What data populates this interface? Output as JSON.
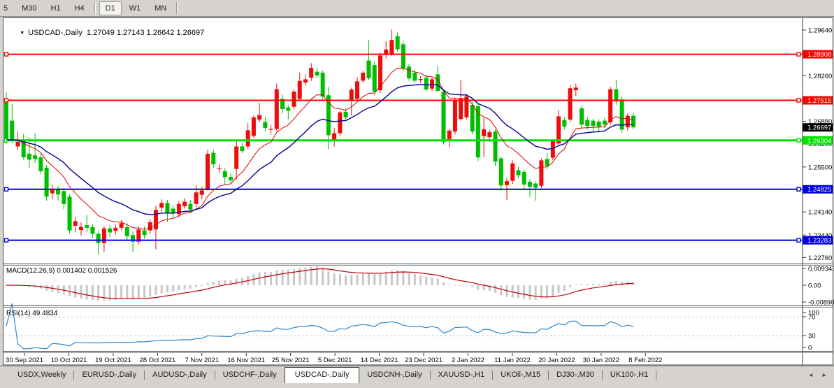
{
  "toolbar": {
    "timeframes": [
      "5",
      "M30",
      "H1",
      "H4",
      "D1",
      "W1",
      "MN"
    ],
    "active": "D1"
  },
  "icons": {
    "dropdown": "▼",
    "tab_prev": "◄",
    "tab_next": "►"
  },
  "tabs": {
    "items": [
      "USDX,Weekly",
      "EURUSD-,Daily",
      "AUDUSD-,Daily",
      "USDCHF-,Daily",
      "USDCAD-,Daily",
      "USDCNH-,Daily",
      "XAUUSD-,H1",
      "UKOil-,M15",
      "DJ30-,M30",
      "UK100-,H1"
    ],
    "active_index": 4
  },
  "chart_data": {
    "type": "candlestick",
    "symbol": "USDCAD-,Daily",
    "ohlc_text": "1.27049 1.27143 1.26642 1.26697",
    "ohlc_display": {
      "open": "1.27049",
      "high": "1.27143",
      "low": "1.26642",
      "close": "1.26697"
    },
    "colors": {
      "up": "#ee0c0c",
      "down": "#00be00",
      "ma_fast": "#dd0000",
      "ma_slow": "#000090",
      "hline_red": "#ff0000",
      "hline_green": "#00e400",
      "hline_blue": "#0000dd",
      "macd_hist": "#c7c7c7",
      "macd_signal": "#bf0000",
      "rsi": "#2e86d0",
      "current_bg": "#000000",
      "label_text": "#ffffff"
    },
    "price_ticks": [
      "1.29640",
      "1.28260",
      "1.26880",
      "1.26200",
      "1.25500",
      "1.24140",
      "1.23440",
      "1.22760"
    ],
    "hlines": [
      {
        "price": 1.28908,
        "label": "1.28908",
        "color": "#ff0000",
        "width": 2
      },
      {
        "price": 1.27515,
        "label": "1.27515",
        "color": "#ff0000",
        "width": 2
      },
      {
        "price": 1.26304,
        "label": "1.26304",
        "color": "#00e400",
        "width": 3
      },
      {
        "price": 1.24825,
        "label": "1.24825",
        "color": "#0000dd",
        "width": 2
      },
      {
        "price": 1.23283,
        "label": "1.23283",
        "color": "#0000dd",
        "width": 2
      }
    ],
    "current_price": {
      "price": 1.26697,
      "label": "1.26697"
    },
    "x_labels": [
      "30 Sep 2021",
      "10 Oct 2021",
      "19 Oct 2021",
      "28 Oct 2021",
      "7 Nov 2021",
      "16 Nov 2021",
      "25 Nov 2021",
      "5 Dec 2021",
      "14 Dec 2021",
      "23 Dec 2021",
      "2 Jan 2022",
      "11 Jan 2022",
      "20 Jan 2022",
      "30 Jan 2022",
      "8 Feb 2022"
    ],
    "overlays": [
      {
        "name": "ma-fast",
        "period": 10,
        "color": "#dd0000",
        "width": 1
      },
      {
        "name": "ma-slow",
        "period": 21,
        "color": "#000090",
        "width": 1.4
      }
    ],
    "macd": {
      "label": "MACD(12,26,9)",
      "values_text": "0.001402 0.001526",
      "params": [
        12,
        26,
        9
      ],
      "axis": [
        "0.009345",
        "0.00",
        "-0.008902"
      ]
    },
    "rsi": {
      "label": "RSI(14)",
      "value_text": "49.4834",
      "period": 14,
      "levels": [
        70,
        30
      ],
      "axis": [
        "100",
        "70",
        "30",
        "0"
      ]
    },
    "candles": [
      [
        1.2752,
        1.2775,
        1.262,
        1.2632
      ],
      [
        1.269,
        1.274,
        1.2622,
        1.2633
      ],
      [
        1.2612,
        1.2656,
        1.26,
        1.2626
      ],
      [
        1.2626,
        1.265,
        1.2572,
        1.2579
      ],
      [
        1.259,
        1.264,
        1.2548,
        1.2572
      ],
      [
        1.2585,
        1.2652,
        1.2562,
        1.2574
      ],
      [
        1.2579,
        1.259,
        1.2528,
        1.2537
      ],
      [
        1.2548,
        1.2556,
        1.2448,
        1.246
      ],
      [
        1.247,
        1.2496,
        1.2452,
        1.2484
      ],
      [
        1.2481,
        1.2492,
        1.2448,
        1.2467
      ],
      [
        1.2477,
        1.2486,
        1.2422,
        1.2438
      ],
      [
        1.246,
        1.2468,
        1.2348,
        1.2358
      ],
      [
        1.2372,
        1.24,
        1.2352,
        1.2386
      ],
      [
        1.2359,
        1.2382,
        1.2342,
        1.2369
      ],
      [
        1.2374,
        1.2405,
        1.2352,
        1.2366
      ],
      [
        1.2368,
        1.2376,
        1.2336,
        1.2348
      ],
      [
        1.2348,
        1.2356,
        1.2285,
        1.232
      ],
      [
        1.232,
        1.2372,
        1.2292,
        1.2364
      ],
      [
        1.2364,
        1.2374,
        1.2338,
        1.2352
      ],
      [
        1.2357,
        1.2376,
        1.2346,
        1.2366
      ],
      [
        1.2366,
        1.239,
        1.2358,
        1.238
      ],
      [
        1.2368,
        1.238,
        1.2328,
        1.2341
      ],
      [
        1.2344,
        1.2356,
        1.2293,
        1.2324
      ],
      [
        1.2324,
        1.237,
        1.2316,
        1.2361
      ],
      [
        1.2358,
        1.237,
        1.2333,
        1.2344
      ],
      [
        1.2358,
        1.2392,
        1.2348,
        1.2383
      ],
      [
        1.2361,
        1.2433,
        1.2301,
        1.242
      ],
      [
        1.2427,
        1.2452,
        1.2414,
        1.2441
      ],
      [
        1.2441,
        1.245,
        1.2384,
        1.241
      ],
      [
        1.2424,
        1.2434,
        1.2396,
        1.241
      ],
      [
        1.2407,
        1.2447,
        1.2398,
        1.2438
      ],
      [
        1.2431,
        1.2456,
        1.2424,
        1.2445
      ],
      [
        1.2438,
        1.245,
        1.2412,
        1.2421
      ],
      [
        1.2438,
        1.2494,
        1.2428,
        1.2473
      ],
      [
        1.2466,
        1.249,
        1.2452,
        1.2479
      ],
      [
        1.2484,
        1.2602,
        1.2478,
        1.259
      ],
      [
        1.2593,
        1.2602,
        1.2548,
        1.2558
      ],
      [
        1.2544,
        1.2558,
        1.2532,
        1.2546
      ],
      [
        1.2537,
        1.2546,
        1.2498,
        1.2519
      ],
      [
        1.252,
        1.2532,
        1.2502,
        1.251
      ],
      [
        1.2544,
        1.2632,
        1.2512,
        1.2612
      ],
      [
        1.2612,
        1.2622,
        1.2592,
        1.2598
      ],
      [
        1.2612,
        1.2682,
        1.2604,
        1.2661
      ],
      [
        1.2644,
        1.2706,
        1.2638,
        1.27
      ],
      [
        1.2693,
        1.2744,
        1.2684,
        1.2707
      ],
      [
        1.2686,
        1.2702,
        1.2658,
        1.2668
      ],
      [
        1.2665,
        1.2678,
        1.2648,
        1.2665
      ],
      [
        1.2665,
        1.2802,
        1.2658,
        1.2785
      ],
      [
        1.2756,
        1.2768,
        1.2712,
        1.2725
      ],
      [
        1.273,
        1.2738,
        1.2694,
        1.272
      ],
      [
        1.2732,
        1.2784,
        1.2724,
        1.2778
      ],
      [
        1.2756,
        1.2836,
        1.2748,
        1.281
      ],
      [
        1.2805,
        1.283,
        1.2796,
        1.2815
      ],
      [
        1.282,
        1.2864,
        1.281,
        1.285
      ],
      [
        1.2838,
        1.2848,
        1.2818,
        1.2827
      ],
      [
        1.2835,
        1.2842,
        1.2752,
        1.2763
      ],
      [
        1.2767,
        1.2792,
        1.2604,
        1.2646
      ],
      [
        1.2629,
        1.2668,
        1.2612,
        1.2652
      ],
      [
        1.2652,
        1.272,
        1.2644,
        1.2715
      ],
      [
        1.2717,
        1.2728,
        1.2692,
        1.27
      ],
      [
        1.2752,
        1.279,
        1.2705,
        1.2784
      ],
      [
        1.2756,
        1.2822,
        1.2748,
        1.2809
      ],
      [
        1.2811,
        1.284,
        1.2804,
        1.2835
      ],
      [
        1.2872,
        1.2934,
        1.2812,
        1.2818
      ],
      [
        1.2858,
        1.2868,
        1.2768,
        1.2778
      ],
      [
        1.2782,
        1.2896,
        1.2774,
        1.2887
      ],
      [
        1.289,
        1.293,
        1.2878,
        1.2905
      ],
      [
        1.2892,
        1.2966,
        1.2886,
        1.2934
      ],
      [
        1.2945,
        1.2956,
        1.2898,
        1.2906
      ],
      [
        1.2921,
        1.2932,
        1.284,
        1.2847
      ],
      [
        1.2854,
        1.2862,
        1.281,
        1.2818
      ],
      [
        1.2835,
        1.2842,
        1.2803,
        1.2811
      ],
      [
        1.2813,
        1.2824,
        1.2804,
        1.2816
      ],
      [
        1.282,
        1.2828,
        1.2778,
        1.2784
      ],
      [
        1.2787,
        1.282,
        1.278,
        1.2815
      ],
      [
        1.283,
        1.2856,
        1.2776,
        1.278
      ],
      [
        1.2777,
        1.2786,
        1.2618,
        1.2625
      ],
      [
        1.2629,
        1.2666,
        1.261,
        1.266
      ],
      [
        1.2657,
        1.276,
        1.2648,
        1.2752
      ],
      [
        1.2695,
        1.2812,
        1.269,
        1.2756
      ],
      [
        1.27,
        1.2772,
        1.2694,
        1.2763
      ],
      [
        1.2738,
        1.2746,
        1.2648,
        1.2657
      ],
      [
        1.2734,
        1.2742,
        1.2568,
        1.2579
      ],
      [
        1.2643,
        1.27,
        1.258,
        1.2664
      ],
      [
        1.264,
        1.2662,
        1.2626,
        1.2655
      ],
      [
        1.2657,
        1.2664,
        1.2553,
        1.2566
      ],
      [
        1.2576,
        1.2582,
        1.2478,
        1.2494
      ],
      [
        1.2495,
        1.2516,
        1.245,
        1.2507
      ],
      [
        1.2508,
        1.257,
        1.2498,
        1.2561
      ],
      [
        1.254,
        1.255,
        1.2516,
        1.2525
      ],
      [
        1.2535,
        1.2542,
        1.2483,
        1.2497
      ],
      [
        1.2505,
        1.2512,
        1.2458,
        1.249
      ],
      [
        1.25,
        1.2506,
        1.2448,
        1.2487
      ],
      [
        1.2493,
        1.2576,
        1.2486,
        1.257
      ],
      [
        1.2574,
        1.2592,
        1.2543,
        1.2553
      ],
      [
        1.2578,
        1.2634,
        1.257,
        1.2628
      ],
      [
        1.2621,
        1.2722,
        1.2614,
        1.2703
      ],
      [
        1.2692,
        1.2702,
        1.2663,
        1.2672
      ],
      [
        1.2693,
        1.2798,
        1.2686,
        1.2788
      ],
      [
        1.2782,
        1.2802,
        1.2764,
        1.279
      ],
      [
        1.2727,
        1.2736,
        1.2668,
        1.2678
      ],
      [
        1.2692,
        1.2702,
        1.2663,
        1.2674
      ],
      [
        1.269,
        1.2696,
        1.2658,
        1.2674
      ],
      [
        1.2687,
        1.2694,
        1.2653,
        1.2672
      ],
      [
        1.269,
        1.2699,
        1.2668,
        1.2678
      ],
      [
        1.2685,
        1.2793,
        1.2676,
        1.2785
      ],
      [
        1.2785,
        1.2813,
        1.2738,
        1.2748
      ],
      [
        1.2754,
        1.2762,
        1.2653,
        1.2663
      ],
      [
        1.267,
        1.2712,
        1.266,
        1.2705
      ],
      [
        1.27049,
        1.27143,
        1.26642,
        1.26697
      ]
    ]
  }
}
